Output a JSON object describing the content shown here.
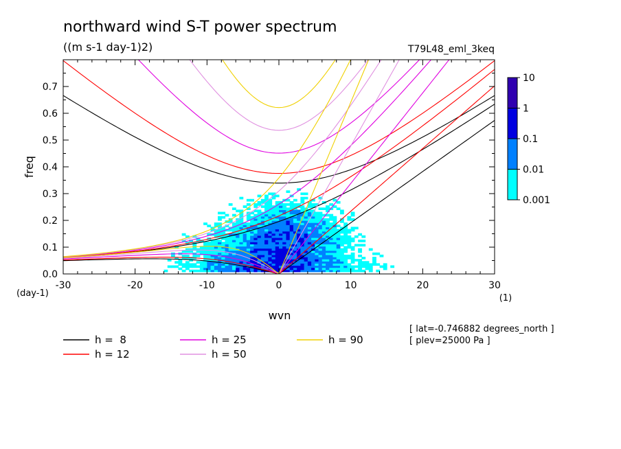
{
  "chart_data": {
    "type": "heatmap",
    "title": "northward wind S-T power spectrum",
    "subtitle": "((m s-1 day-1)2)",
    "experiment": "T79L48_eml_3keq",
    "xlabel": "wvn",
    "x_unit": "(1)",
    "ylabel": "freq",
    "y_unit": "(day-1)",
    "xlim": [
      -30,
      30
    ],
    "ylim": [
      0,
      0.8
    ],
    "x_ticks": [
      "-30",
      "-20",
      "-10",
      "0",
      "10",
      "20",
      "30"
    ],
    "y_ticks": [
      "0.0",
      "0.1",
      "0.2",
      "0.3",
      "0.4",
      "0.5",
      "0.6",
      "0.7"
    ],
    "colorbar": {
      "levels": [
        "0.001",
        "0.01",
        "0.1",
        "1",
        "10"
      ],
      "colors": [
        "#00ffff",
        "#0080ff",
        "#0000e0",
        "#3000b0"
      ]
    },
    "dispersion_curves": [
      {
        "label": "h =  8",
        "h": 8,
        "color": "#000000"
      },
      {
        "label": "h = 12",
        "h": 12,
        "color": "#ff0000"
      },
      {
        "label": "h = 25",
        "h": 25,
        "color": "#e000e0"
      },
      {
        "label": "h = 50",
        "h": 50,
        "color": "#e090e0"
      },
      {
        "label": "h = 90",
        "h": 90,
        "color": "#f0d000"
      }
    ],
    "info_lines": [
      "[ lat=-0.746882 degrees_north ]",
      "[ plev=25000 Pa ]"
    ]
  }
}
